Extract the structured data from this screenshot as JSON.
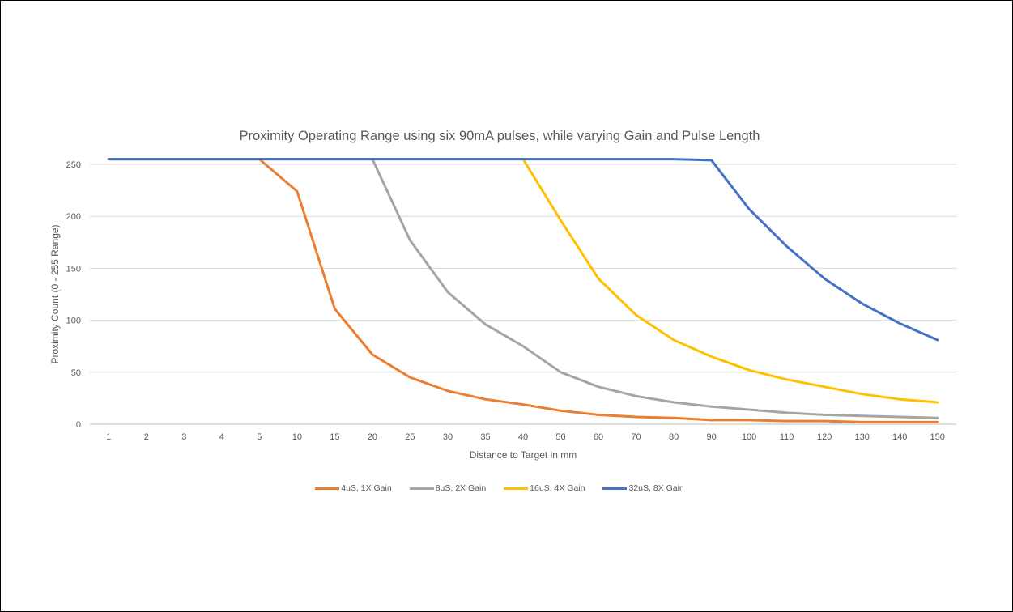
{
  "chart_data": {
    "type": "line",
    "title": "Proximity Operating Range using six 90mA pulses, while varying Gain and Pulse Length",
    "xlabel": "Distance to Target in mm",
    "ylabel": "Proximity Count (0 - 255 Range)",
    "categories": [
      "1",
      "2",
      "3",
      "4",
      "5",
      "10",
      "15",
      "20",
      "25",
      "30",
      "35",
      "40",
      "50",
      "60",
      "70",
      "80",
      "90",
      "100",
      "110",
      "120",
      "130",
      "140",
      "150"
    ],
    "ylim": [
      0,
      250
    ],
    "yticks": [
      0,
      50,
      100,
      150,
      200,
      250
    ],
    "grid": true,
    "legend_position": "bottom",
    "series": [
      {
        "name": "4uS, 1X Gain",
        "color": "#ED7D31",
        "values": [
          255,
          255,
          255,
          255,
          255,
          224,
          111,
          67,
          45,
          32,
          24,
          19,
          13,
          9,
          7,
          6,
          4,
          4,
          3,
          3,
          2,
          2,
          2
        ]
      },
      {
        "name": "8uS, 2X Gain",
        "color": "#A5A5A5",
        "values": [
          255,
          255,
          255,
          255,
          255,
          255,
          255,
          255,
          177,
          127,
          96,
          75,
          50,
          36,
          27,
          21,
          17,
          14,
          11,
          9,
          8,
          7,
          6
        ]
      },
      {
        "name": "16uS, 4X Gain",
        "color": "#FFC000",
        "values": [
          255,
          255,
          255,
          255,
          255,
          255,
          255,
          255,
          255,
          255,
          255,
          255,
          196,
          140,
          105,
          81,
          65,
          52,
          43,
          36,
          29,
          24,
          21
        ]
      },
      {
        "name": "32uS, 8X Gain",
        "color": "#4472C4",
        "values": [
          255,
          255,
          255,
          255,
          255,
          255,
          255,
          255,
          255,
          255,
          255,
          255,
          255,
          255,
          255,
          255,
          254,
          207,
          171,
          140,
          116,
          97,
          81
        ]
      }
    ]
  }
}
